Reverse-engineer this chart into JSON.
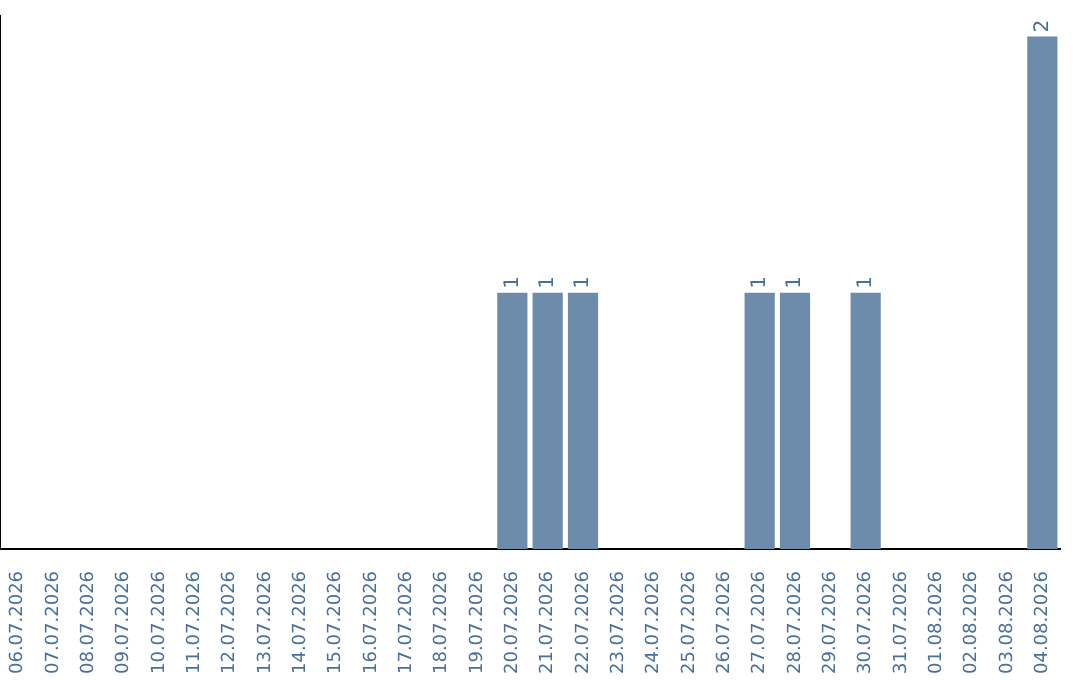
{
  "chart_data": {
    "type": "bar",
    "categories": [
      "06.07.2026",
      "07.07.2026",
      "08.07.2026",
      "09.07.2026",
      "10.07.2026",
      "11.07.2026",
      "12.07.2026",
      "13.07.2026",
      "14.07.2026",
      "15.07.2026",
      "16.07.2026",
      "17.07.2026",
      "18.07.2026",
      "19.07.2026",
      "20.07.2026",
      "21.07.2026",
      "22.07.2026",
      "23.07.2026",
      "24.07.2026",
      "25.07.2026",
      "26.07.2026",
      "27.07.2026",
      "28.07.2026",
      "29.07.2026",
      "30.07.2026",
      "31.07.2026",
      "01.08.2026",
      "02.08.2026",
      "03.08.2026",
      "04.08.2026"
    ],
    "values": [
      null,
      null,
      null,
      null,
      null,
      null,
      null,
      null,
      null,
      null,
      null,
      null,
      null,
      null,
      1,
      1,
      1,
      null,
      null,
      null,
      null,
      1,
      1,
      null,
      1,
      null,
      null,
      null,
      null,
      2
    ],
    "color": "#6d8bab",
    "ylim": [
      0,
      2.08
    ],
    "data_labels": true,
    "tick_labels": "x",
    "grid": false,
    "legend": false
  }
}
